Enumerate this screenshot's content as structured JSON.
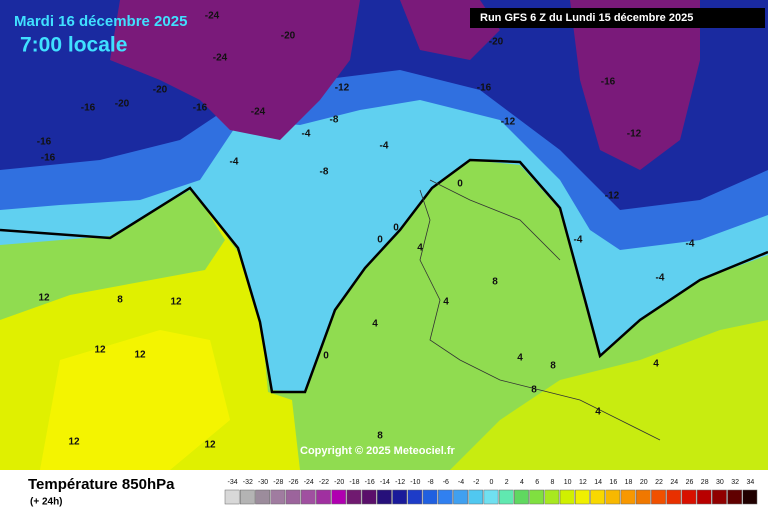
{
  "header": {
    "date": "Mardi 16 décembre 2025",
    "time": "7:00 locale",
    "run": "Run GFS 6 Z du Lundi 15 décembre 2025",
    "copyright": "Copyright © 2025 Meteociel.fr"
  },
  "footer": {
    "title": "Température 850hPa",
    "subtitle": "(+ 24h)"
  },
  "contour_labels": [
    -24,
    -20,
    -16,
    -16,
    -20,
    -16,
    -16,
    -20,
    -24,
    -24,
    -12,
    -8,
    -4,
    -4,
    -8,
    -4,
    -12,
    -16,
    -16,
    -12,
    -12,
    -20,
    0,
    0,
    0,
    -4,
    -4,
    -4,
    4,
    4,
    4,
    8,
    8,
    4,
    8,
    12,
    12,
    12,
    12,
    12,
    12,
    8,
    8,
    4,
    4,
    0
  ],
  "legend": {
    "ticks": [
      -34,
      -32,
      -30,
      -28,
      -26,
      -24,
      -22,
      -20,
      -18,
      -16,
      -14,
      -12,
      -10,
      -8,
      -6,
      -4,
      -2,
      0,
      2,
      4,
      6,
      8,
      10,
      12,
      14,
      16,
      18,
      20,
      22,
      24,
      26,
      28,
      30,
      32,
      34
    ],
    "colors": [
      "#d8d8d8",
      "#b4b4b4",
      "#9c8c9c",
      "#a07ca0",
      "#9c649c",
      "#a050a0",
      "#a030a0",
      "#b000b0",
      "#701a70",
      "#5a0f6a",
      "#26107a",
      "#1a1a9a",
      "#1e3cc8",
      "#2060e0",
      "#3080f0",
      "#40a0f0",
      "#50c8f0",
      "#70e0f0",
      "#60e8b0",
      "#60d860",
      "#80e040",
      "#a8e820",
      "#d0f000",
      "#f0f000",
      "#f8d800",
      "#f8b800",
      "#f89800",
      "#f07800",
      "#f05000",
      "#e83000",
      "#d81000",
      "#b80000",
      "#900000",
      "#600000",
      "#200000"
    ]
  }
}
